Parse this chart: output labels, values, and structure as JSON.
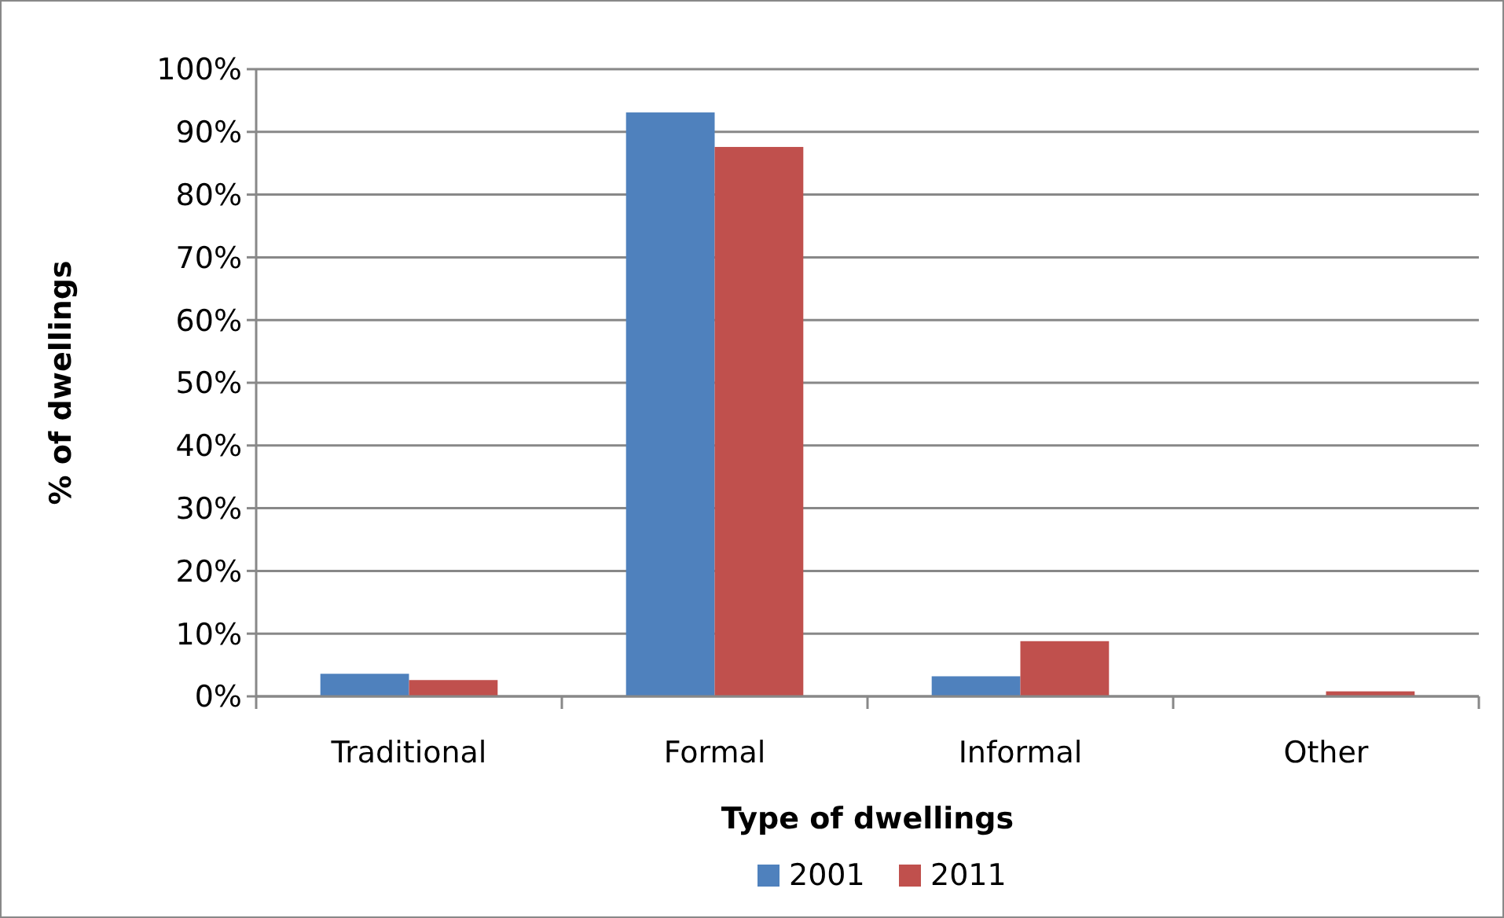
{
  "chart_data": {
    "type": "bar",
    "xlabel": "Type of dwellings",
    "ylabel": "% of dwellings",
    "categories": [
      "Traditional",
      "Formal",
      "Informal",
      "Other"
    ],
    "series": [
      {
        "name": "2001",
        "color": "#4f81bd",
        "values": [
          3.6,
          93.1,
          3.2,
          0
        ]
      },
      {
        "name": "2011",
        "color": "#c0504d",
        "values": [
          2.6,
          87.6,
          8.8,
          0.8
        ]
      }
    ],
    "ylim": [
      0,
      100
    ],
    "yticks": [
      {
        "value": 0,
        "label": "0%"
      },
      {
        "value": 10,
        "label": "10%"
      },
      {
        "value": 20,
        "label": "20%"
      },
      {
        "value": 30,
        "label": "30%"
      },
      {
        "value": 40,
        "label": "40%"
      },
      {
        "value": 50,
        "label": "50%"
      },
      {
        "value": 60,
        "label": "60%"
      },
      {
        "value": 70,
        "label": "70%"
      },
      {
        "value": 80,
        "label": "80%"
      },
      {
        "value": 90,
        "label": "90%"
      },
      {
        "value": 100,
        "label": "100%"
      }
    ],
    "grid": "y",
    "legend": "bottom"
  }
}
